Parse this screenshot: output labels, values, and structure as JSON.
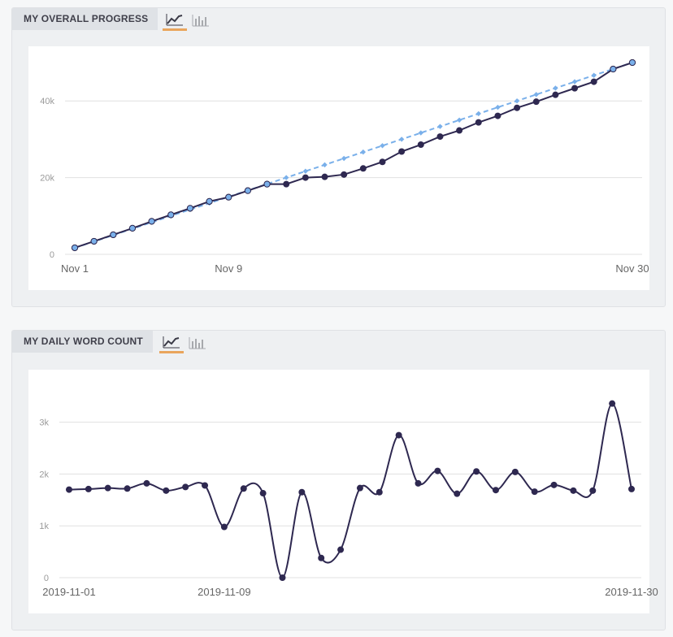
{
  "panels": {
    "overall": {
      "title": "MY OVERALL PROGRESS"
    },
    "daily": {
      "title": "MY DAILY WORD COUNT"
    }
  },
  "icons": {
    "line": "line-chart-icon",
    "bar": "bar-chart-icon"
  },
  "colors": {
    "accent": "#e9a55c",
    "series_dark": "#2e2850",
    "series_light": "#7ab0ea",
    "grid": "#e0e0e0"
  },
  "chart_data": [
    {
      "type": "line",
      "title": "MY OVERALL PROGRESS",
      "x": [
        1,
        2,
        3,
        4,
        5,
        6,
        7,
        8,
        9,
        10,
        11,
        12,
        13,
        14,
        15,
        16,
        17,
        18,
        19,
        20,
        21,
        22,
        23,
        24,
        25,
        26,
        27,
        28,
        29,
        30
      ],
      "x_ticks": [
        "Nov 1",
        "Nov 9",
        "Nov 30"
      ],
      "y_ticks": [
        "0",
        "20k",
        "40k"
      ],
      "ylim": [
        0,
        50000
      ],
      "grid": true,
      "series": [
        {
          "style": "solid",
          "values": [
            1700,
            3400,
            5100,
            6800,
            8600,
            10300,
            12000,
            13800,
            14900,
            16600,
            18300,
            18300,
            20000,
            20200,
            20800,
            22400,
            24100,
            26800,
            28600,
            30700,
            32300,
            34400,
            36100,
            38200,
            39800,
            41600,
            43300,
            45000,
            48300,
            50000
          ]
        },
        {
          "style": "dashed",
          "values": [
            1667,
            3333,
            5000,
            6667,
            8333,
            10000,
            11667,
            13333,
            15000,
            16667,
            18333,
            20000,
            21667,
            23333,
            25000,
            26667,
            28333,
            30000,
            31667,
            33333,
            35000,
            36667,
            38333,
            40000,
            41667,
            43333,
            45000,
            46667,
            48333,
            50000
          ]
        }
      ]
    },
    {
      "type": "line",
      "title": "MY DAILY WORD COUNT",
      "x": [
        1,
        2,
        3,
        4,
        5,
        6,
        7,
        8,
        9,
        10,
        11,
        12,
        13,
        14,
        15,
        16,
        17,
        18,
        19,
        20,
        21,
        22,
        23,
        24,
        25,
        26,
        27,
        28,
        29,
        30
      ],
      "x_ticks": [
        "2019-11-01",
        "2019-11-09",
        "2019-11-30"
      ],
      "y_ticks": [
        "0",
        "1k",
        "2k",
        "3k"
      ],
      "ylim": [
        0,
        3700
      ],
      "grid": true,
      "series": [
        {
          "style": "smooth",
          "values": [
            1700,
            1710,
            1730,
            1720,
            1820,
            1680,
            1750,
            1780,
            980,
            1720,
            1630,
            0,
            1650,
            380,
            540,
            1730,
            1650,
            2750,
            1820,
            2060,
            1620,
            2050,
            1690,
            2040,
            1660,
            1790,
            1680,
            1680,
            3360,
            1710
          ]
        }
      ]
    }
  ]
}
